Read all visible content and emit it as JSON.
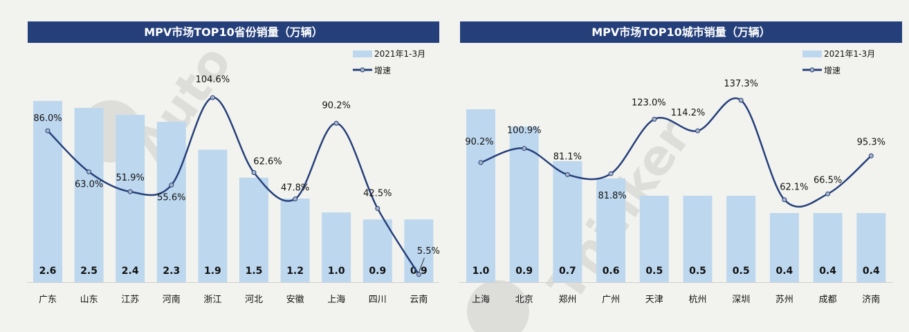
{
  "colors": {
    "bar": "#bdd7ee",
    "line": "#253f7a",
    "marker": "#a9b4c8",
    "title_bg": "#253f7a",
    "background": "#f2f3ee"
  },
  "watermark": "Auto Thinker 汽车智库平台",
  "chart_data": [
    {
      "type": "bar+line",
      "title": "MPV市场TOP10省份销量（万辆）",
      "categories": [
        "广东",
        "山东",
        "江苏",
        "河南",
        "浙江",
        "河北",
        "安徽",
        "上海",
        "四川",
        "云南"
      ],
      "series": [
        {
          "name": "2021年1-3月",
          "type": "bar",
          "values": [
            2.6,
            2.5,
            2.4,
            2.3,
            1.9,
            1.5,
            1.2,
            1.0,
            0.9,
            0.9
          ],
          "labels": [
            "2.6",
            "2.5",
            "2.4",
            "2.3",
            "1.9",
            "1.5",
            "1.2",
            "1.0",
            "0.9",
            "0.9"
          ]
        },
        {
          "name": "增速",
          "type": "line",
          "values": [
            86.0,
            63.0,
            51.9,
            55.6,
            104.6,
            62.6,
            47.8,
            90.2,
            42.5,
            5.5
          ],
          "labels": [
            "86.0%",
            "63.0%",
            "51.9%",
            "55.6%",
            "104.6%",
            "62.6%",
            "47.8%",
            "90.2%",
            "42.5%",
            "5.5%"
          ]
        }
      ],
      "legend": "top-right",
      "grid": false
    },
    {
      "type": "bar+line",
      "title": "MPV市场TOP10城市销量（万辆）",
      "categories": [
        "上海",
        "北京",
        "郑州",
        "广州",
        "天津",
        "杭州",
        "深圳",
        "苏州",
        "成都",
        "济南"
      ],
      "series": [
        {
          "name": "2021年1-3月",
          "type": "bar",
          "values": [
            1.0,
            0.9,
            0.7,
            0.6,
            0.5,
            0.5,
            0.5,
            0.4,
            0.4,
            0.4
          ],
          "labels": [
            "1.0",
            "0.9",
            "0.7",
            "0.6",
            "0.5",
            "0.5",
            "0.5",
            "0.4",
            "0.4",
            "0.4"
          ]
        },
        {
          "name": "增速",
          "type": "line",
          "values": [
            90.2,
            100.9,
            81.1,
            81.8,
            123.0,
            114.2,
            137.3,
            62.1,
            66.5,
            95.3
          ],
          "labels": [
            "90.2%",
            "100.9%",
            "81.1%",
            "81.8%",
            "123.0%",
            "114.2%",
            "137.3%",
            "62.1%",
            "66.5%",
            "95.3%"
          ]
        }
      ],
      "legend": "top-right",
      "grid": false
    }
  ]
}
